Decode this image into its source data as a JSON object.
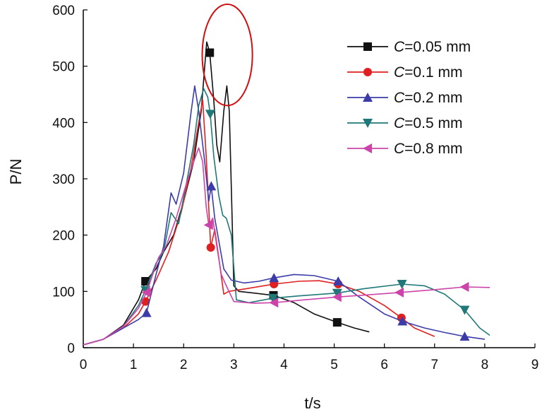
{
  "chart_data": {
    "type": "line",
    "xlabel": "t/s",
    "ylabel": "P/N",
    "xlim": [
      0,
      9
    ],
    "ylim": [
      0,
      600
    ],
    "xticks": [
      0,
      1,
      2,
      3,
      4,
      5,
      6,
      7,
      8,
      9
    ],
    "yticks": [
      0,
      100,
      200,
      300,
      400,
      500,
      600
    ],
    "grid": false,
    "legend_position": "top-right",
    "annotation": {
      "shape": "ellipse",
      "color": "#d01010",
      "center": [
        2.87,
        520
      ],
      "rx": 0.5,
      "ry": 90
    },
    "series": [
      {
        "name": "C=0.05 mm",
        "color": "#111111",
        "marker": "square",
        "markers": [
          [
            1.24,
            118
          ],
          [
            2.52,
            524
          ],
          [
            3.79,
            93
          ],
          [
            5.06,
            45
          ]
        ],
        "points": [
          [
            0,
            5
          ],
          [
            0.4,
            15
          ],
          [
            0.8,
            40
          ],
          [
            1.1,
            85
          ],
          [
            1.24,
            118
          ],
          [
            1.45,
            140
          ],
          [
            1.6,
            170
          ],
          [
            1.8,
            200
          ],
          [
            2.0,
            260
          ],
          [
            2.2,
            330
          ],
          [
            2.35,
            420
          ],
          [
            2.42,
            500
          ],
          [
            2.46,
            543
          ],
          [
            2.52,
            524
          ],
          [
            2.6,
            440
          ],
          [
            2.66,
            360
          ],
          [
            2.72,
            330
          ],
          [
            2.8,
            420
          ],
          [
            2.86,
            465
          ],
          [
            2.91,
            420
          ],
          [
            2.96,
            250
          ],
          [
            3.0,
            110
          ],
          [
            3.1,
            100
          ],
          [
            3.4,
            97
          ],
          [
            3.79,
            93
          ],
          [
            4.2,
            80
          ],
          [
            4.6,
            60
          ],
          [
            5.06,
            45
          ],
          [
            5.4,
            35
          ],
          [
            5.7,
            28
          ]
        ]
      },
      {
        "name": "C=0.1 mm",
        "color": "#e02020",
        "marker": "circle",
        "markers": [
          [
            1.24,
            82
          ],
          [
            2.54,
            178
          ],
          [
            3.8,
            113
          ],
          [
            5.08,
            113
          ],
          [
            6.34,
            53
          ]
        ],
        "points": [
          [
            0,
            5
          ],
          [
            0.4,
            15
          ],
          [
            0.8,
            35
          ],
          [
            1.1,
            60
          ],
          [
            1.24,
            82
          ],
          [
            1.45,
            120
          ],
          [
            1.7,
            170
          ],
          [
            1.95,
            240
          ],
          [
            2.15,
            320
          ],
          [
            2.3,
            400
          ],
          [
            2.38,
            440
          ],
          [
            2.45,
            340
          ],
          [
            2.54,
            178
          ],
          [
            2.62,
            210
          ],
          [
            2.7,
            160
          ],
          [
            2.8,
            95
          ],
          [
            2.9,
            100
          ],
          [
            3.2,
            104
          ],
          [
            3.8,
            113
          ],
          [
            4.3,
            118
          ],
          [
            4.7,
            119
          ],
          [
            5.08,
            113
          ],
          [
            5.5,
            100
          ],
          [
            6.0,
            75
          ],
          [
            6.34,
            53
          ],
          [
            6.6,
            35
          ],
          [
            7.0,
            20
          ]
        ]
      },
      {
        "name": "C=0.2 mm",
        "color": "#3c3ca8",
        "marker": "triangle-up",
        "markers": [
          [
            1.26,
            62
          ],
          [
            2.55,
            287
          ],
          [
            3.8,
            124
          ],
          [
            5.08,
            118
          ],
          [
            6.36,
            47
          ],
          [
            7.6,
            20
          ]
        ],
        "points": [
          [
            0,
            5
          ],
          [
            0.4,
            15
          ],
          [
            0.8,
            35
          ],
          [
            1.1,
            50
          ],
          [
            1.26,
            62
          ],
          [
            1.45,
            130
          ],
          [
            1.6,
            180
          ],
          [
            1.75,
            275
          ],
          [
            1.85,
            255
          ],
          [
            2.0,
            310
          ],
          [
            2.15,
            420
          ],
          [
            2.22,
            465
          ],
          [
            2.3,
            420
          ],
          [
            2.42,
            330
          ],
          [
            2.5,
            260
          ],
          [
            2.55,
            287
          ],
          [
            2.62,
            230
          ],
          [
            2.7,
            190
          ],
          [
            2.8,
            140
          ],
          [
            2.95,
            120
          ],
          [
            3.2,
            115
          ],
          [
            3.5,
            118
          ],
          [
            3.8,
            124
          ],
          [
            4.2,
            130
          ],
          [
            4.6,
            128
          ],
          [
            5.08,
            118
          ],
          [
            5.5,
            90
          ],
          [
            6.0,
            60
          ],
          [
            6.36,
            47
          ],
          [
            6.8,
            35
          ],
          [
            7.2,
            27
          ],
          [
            7.6,
            20
          ],
          [
            8.0,
            15
          ]
        ]
      },
      {
        "name": "C=0.5 mm",
        "color": "#207878",
        "marker": "triangle-down",
        "markers": [
          [
            1.24,
            102
          ],
          [
            2.53,
            415
          ],
          [
            3.78,
            88
          ],
          [
            5.06,
            97
          ],
          [
            6.35,
            113
          ],
          [
            7.6,
            67
          ]
        ],
        "points": [
          [
            0,
            5
          ],
          [
            0.4,
            15
          ],
          [
            0.8,
            38
          ],
          [
            1.1,
            75
          ],
          [
            1.24,
            102
          ],
          [
            1.45,
            150
          ],
          [
            1.6,
            170
          ],
          [
            1.75,
            240
          ],
          [
            1.9,
            220
          ],
          [
            2.05,
            290
          ],
          [
            2.2,
            360
          ],
          [
            2.3,
            430
          ],
          [
            2.4,
            460
          ],
          [
            2.48,
            445
          ],
          [
            2.53,
            415
          ],
          [
            2.6,
            340
          ],
          [
            2.7,
            270
          ],
          [
            2.78,
            235
          ],
          [
            2.85,
            230
          ],
          [
            2.95,
            200
          ],
          [
            3.05,
            85
          ],
          [
            3.3,
            80
          ],
          [
            3.78,
            88
          ],
          [
            4.3,
            92
          ],
          [
            5.06,
            97
          ],
          [
            5.6,
            105
          ],
          [
            6.35,
            113
          ],
          [
            6.8,
            110
          ],
          [
            7.2,
            95
          ],
          [
            7.6,
            67
          ],
          [
            7.9,
            35
          ],
          [
            8.1,
            22
          ]
        ]
      },
      {
        "name": "C=0.8 mm",
        "color": "#cc44aa",
        "marker": "triangle-left",
        "markers": [
          [
            1.26,
            98
          ],
          [
            2.5,
            218
          ],
          [
            3.8,
            80
          ],
          [
            5.06,
            90
          ],
          [
            6.3,
            98
          ],
          [
            7.6,
            108
          ]
        ],
        "points": [
          [
            0,
            5
          ],
          [
            0.4,
            15
          ],
          [
            0.8,
            38
          ],
          [
            1.1,
            70
          ],
          [
            1.26,
            98
          ],
          [
            1.5,
            160
          ],
          [
            1.65,
            180
          ],
          [
            1.85,
            230
          ],
          [
            2.05,
            290
          ],
          [
            2.2,
            330
          ],
          [
            2.3,
            355
          ],
          [
            2.38,
            330
          ],
          [
            2.45,
            250
          ],
          [
            2.5,
            218
          ],
          [
            2.58,
            230
          ],
          [
            2.66,
            180
          ],
          [
            2.75,
            130
          ],
          [
            2.85,
            110
          ],
          [
            3.0,
            82
          ],
          [
            3.4,
            79
          ],
          [
            3.8,
            80
          ],
          [
            4.4,
            85
          ],
          [
            5.06,
            90
          ],
          [
            5.7,
            94
          ],
          [
            6.3,
            98
          ],
          [
            7.0,
            103
          ],
          [
            7.6,
            108
          ],
          [
            8.1,
            107
          ]
        ]
      }
    ]
  }
}
